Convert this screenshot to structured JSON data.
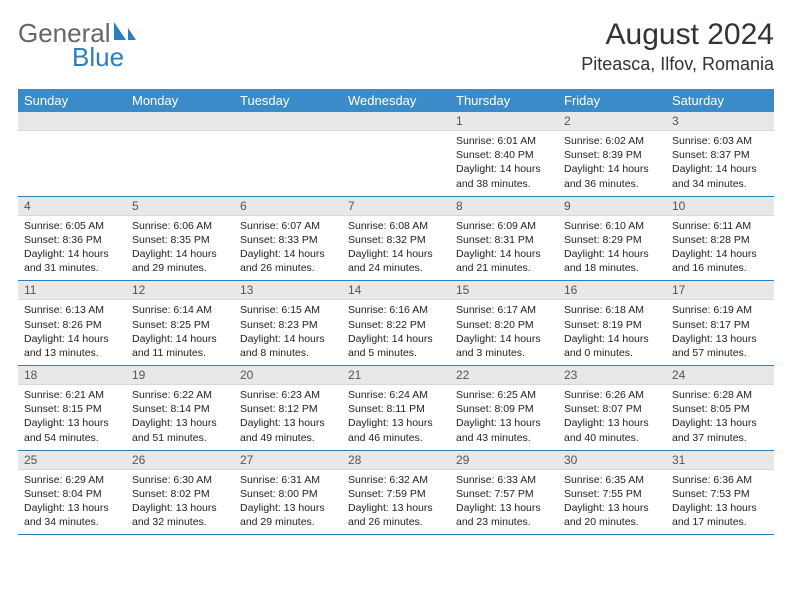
{
  "brand": {
    "general": "General",
    "blue": "Blue",
    "accent": "#2a7fc0"
  },
  "title": "August 2024",
  "location": "Piteasca, Ilfov, Romania",
  "colors": {
    "header_bg": "#3b8bc8",
    "header_fg": "#ffffff",
    "daynum_bg": "#e8e8e8",
    "border": "#2a7fc0"
  },
  "weekdays": [
    "Sunday",
    "Monday",
    "Tuesday",
    "Wednesday",
    "Thursday",
    "Friday",
    "Saturday"
  ],
  "weeks": [
    [
      null,
      null,
      null,
      null,
      {
        "n": "1",
        "sr": "6:01 AM",
        "ss": "8:40 PM",
        "dl": "14 hours and 38 minutes."
      },
      {
        "n": "2",
        "sr": "6:02 AM",
        "ss": "8:39 PM",
        "dl": "14 hours and 36 minutes."
      },
      {
        "n": "3",
        "sr": "6:03 AM",
        "ss": "8:37 PM",
        "dl": "14 hours and 34 minutes."
      }
    ],
    [
      {
        "n": "4",
        "sr": "6:05 AM",
        "ss": "8:36 PM",
        "dl": "14 hours and 31 minutes."
      },
      {
        "n": "5",
        "sr": "6:06 AM",
        "ss": "8:35 PM",
        "dl": "14 hours and 29 minutes."
      },
      {
        "n": "6",
        "sr": "6:07 AM",
        "ss": "8:33 PM",
        "dl": "14 hours and 26 minutes."
      },
      {
        "n": "7",
        "sr": "6:08 AM",
        "ss": "8:32 PM",
        "dl": "14 hours and 24 minutes."
      },
      {
        "n": "8",
        "sr": "6:09 AM",
        "ss": "8:31 PM",
        "dl": "14 hours and 21 minutes."
      },
      {
        "n": "9",
        "sr": "6:10 AM",
        "ss": "8:29 PM",
        "dl": "14 hours and 18 minutes."
      },
      {
        "n": "10",
        "sr": "6:11 AM",
        "ss": "8:28 PM",
        "dl": "14 hours and 16 minutes."
      }
    ],
    [
      {
        "n": "11",
        "sr": "6:13 AM",
        "ss": "8:26 PM",
        "dl": "14 hours and 13 minutes."
      },
      {
        "n": "12",
        "sr": "6:14 AM",
        "ss": "8:25 PM",
        "dl": "14 hours and 11 minutes."
      },
      {
        "n": "13",
        "sr": "6:15 AM",
        "ss": "8:23 PM",
        "dl": "14 hours and 8 minutes."
      },
      {
        "n": "14",
        "sr": "6:16 AM",
        "ss": "8:22 PM",
        "dl": "14 hours and 5 minutes."
      },
      {
        "n": "15",
        "sr": "6:17 AM",
        "ss": "8:20 PM",
        "dl": "14 hours and 3 minutes."
      },
      {
        "n": "16",
        "sr": "6:18 AM",
        "ss": "8:19 PM",
        "dl": "14 hours and 0 minutes."
      },
      {
        "n": "17",
        "sr": "6:19 AM",
        "ss": "8:17 PM",
        "dl": "13 hours and 57 minutes."
      }
    ],
    [
      {
        "n": "18",
        "sr": "6:21 AM",
        "ss": "8:15 PM",
        "dl": "13 hours and 54 minutes."
      },
      {
        "n": "19",
        "sr": "6:22 AM",
        "ss": "8:14 PM",
        "dl": "13 hours and 51 minutes."
      },
      {
        "n": "20",
        "sr": "6:23 AM",
        "ss": "8:12 PM",
        "dl": "13 hours and 49 minutes."
      },
      {
        "n": "21",
        "sr": "6:24 AM",
        "ss": "8:11 PM",
        "dl": "13 hours and 46 minutes."
      },
      {
        "n": "22",
        "sr": "6:25 AM",
        "ss": "8:09 PM",
        "dl": "13 hours and 43 minutes."
      },
      {
        "n": "23",
        "sr": "6:26 AM",
        "ss": "8:07 PM",
        "dl": "13 hours and 40 minutes."
      },
      {
        "n": "24",
        "sr": "6:28 AM",
        "ss": "8:05 PM",
        "dl": "13 hours and 37 minutes."
      }
    ],
    [
      {
        "n": "25",
        "sr": "6:29 AM",
        "ss": "8:04 PM",
        "dl": "13 hours and 34 minutes."
      },
      {
        "n": "26",
        "sr": "6:30 AM",
        "ss": "8:02 PM",
        "dl": "13 hours and 32 minutes."
      },
      {
        "n": "27",
        "sr": "6:31 AM",
        "ss": "8:00 PM",
        "dl": "13 hours and 29 minutes."
      },
      {
        "n": "28",
        "sr": "6:32 AM",
        "ss": "7:59 PM",
        "dl": "13 hours and 26 minutes."
      },
      {
        "n": "29",
        "sr": "6:33 AM",
        "ss": "7:57 PM",
        "dl": "13 hours and 23 minutes."
      },
      {
        "n": "30",
        "sr": "6:35 AM",
        "ss": "7:55 PM",
        "dl": "13 hours and 20 minutes."
      },
      {
        "n": "31",
        "sr": "6:36 AM",
        "ss": "7:53 PM",
        "dl": "13 hours and 17 minutes."
      }
    ]
  ],
  "labels": {
    "sunrise": "Sunrise:",
    "sunset": "Sunset:",
    "daylight": "Daylight:"
  }
}
